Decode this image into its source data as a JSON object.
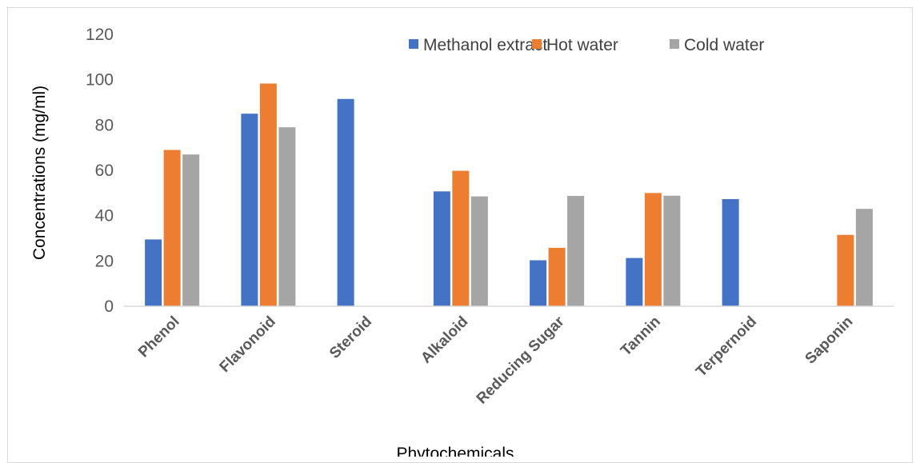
{
  "chart_data": {
    "type": "bar",
    "title": "",
    "xlabel": "Phytochemicals",
    "ylabel": "Concentrations (mg/ml)",
    "ylim": [
      0,
      120
    ],
    "yticks": [
      0,
      20,
      40,
      60,
      80,
      100,
      120
    ],
    "grid": false,
    "legend_position": "top-right",
    "categories": [
      "Phenol",
      "Flavonoid",
      "Steroid",
      "Alkaloid",
      "Reducing Sugar",
      "Tannin",
      "Terpernoid",
      "Saponin"
    ],
    "series": [
      {
        "name": "Methanol extract",
        "color": "#4472C4",
        "values": [
          29.5,
          85,
          91.5,
          50.7,
          20.3,
          21.3,
          47.3,
          0
        ]
      },
      {
        "name": "Hot water",
        "color": "#ED7D31",
        "values": [
          69,
          98.3,
          0,
          59.8,
          25.8,
          50,
          0,
          31.5
        ]
      },
      {
        "name": "Cold water",
        "color": "#A5A5A5",
        "values": [
          67,
          79,
          0,
          48.5,
          48.7,
          48.8,
          0,
          43
        ]
      }
    ]
  }
}
